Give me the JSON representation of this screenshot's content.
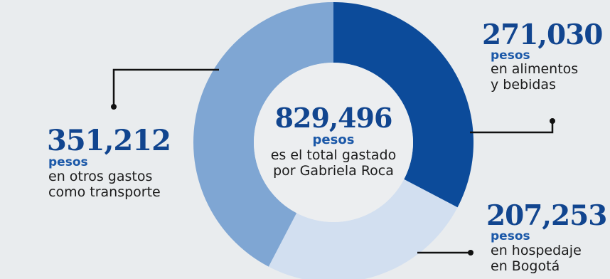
{
  "chart_data": {
    "type": "pie",
    "categories": [
      "alimentos y bebidas",
      "hospedaje en Bogotá",
      "otros gastos como transporte"
    ],
    "values": [
      271030,
      207253,
      351212
    ],
    "total": 829496
  },
  "center": {
    "amount": "829,496",
    "unit": "pesos",
    "line1": "es el total gastado",
    "line2": "por Gabriela Roca"
  },
  "labels": {
    "food": {
      "amount": "271,030",
      "unit": "pesos",
      "line1": "en alimentos",
      "line2": "y bebidas"
    },
    "lodging": {
      "amount": "207,253",
      "unit": "pesos",
      "line1": "en hospedaje",
      "line2": "en Bogotá"
    },
    "other": {
      "amount": "351,212",
      "unit": "pesos",
      "line1": "en otros gastos",
      "line2": "como transporte"
    }
  },
  "colors": {
    "food": "#0c4b9a",
    "lodging": "#d2dff0",
    "other": "#7fa6d3",
    "leader": "#111111"
  }
}
